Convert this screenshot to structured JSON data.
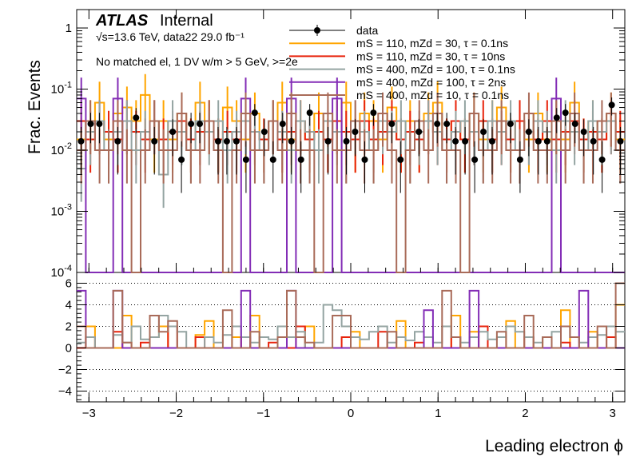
{
  "chart_data": [
    {
      "type": "step-histogram",
      "panel": "main",
      "ylabel": "Frac. Events",
      "yscale": "log",
      "ylim": [
        0.0001,
        2
      ],
      "xlim": [
        -3.14,
        3.14
      ],
      "y_ticks": [
        {
          "value": 1,
          "label": "1"
        },
        {
          "value": 0.1,
          "label": "10^-1"
        },
        {
          "value": 0.01,
          "label": "10^-2"
        },
        {
          "value": 0.001,
          "label": "10^-3"
        },
        {
          "value": 0.0001,
          "label": "10^-4"
        }
      ],
      "bins": 60,
      "data_points": {
        "name": "data",
        "x": [
          -3.09,
          -2.98,
          -2.88,
          -2.67,
          -2.46,
          -2.25,
          -2.04,
          -1.94,
          -1.83,
          -1.73,
          -1.52,
          -1.42,
          -1.31,
          -1.2,
          -1.1,
          -0.99,
          -0.89,
          -0.78,
          -0.68,
          -0.57,
          -0.47,
          -0.26,
          -0.05,
          0.05,
          0.16,
          0.26,
          0.47,
          0.57,
          0.78,
          0.99,
          1.1,
          1.2,
          1.31,
          1.42,
          1.52,
          1.62,
          1.83,
          1.94,
          2.04,
          2.15,
          2.25,
          2.36,
          2.46,
          2.57,
          2.67,
          2.78,
          2.88,
          2.99,
          3.09
        ],
        "y": [
          0.014,
          0.027,
          0.027,
          0.014,
          0.034,
          0.014,
          0.02,
          0.007,
          0.027,
          0.027,
          0.014,
          0.014,
          0.014,
          0.007,
          0.041,
          0.02,
          0.007,
          0.027,
          0.014,
          0.007,
          0.041,
          0.014,
          0.014,
          0.02,
          0.007,
          0.041,
          0.027,
          0.007,
          0.02,
          0.027,
          0.027,
          0.014,
          0.014,
          0.007,
          0.02,
          0.014,
          0.027,
          0.007,
          0.02,
          0.014,
          0.014,
          0.034,
          0.041,
          0.027,
          0.02,
          0.014,
          0.007,
          0.055,
          0.014
        ],
        "yerr": [
          0.01,
          0.014,
          0.014,
          0.01,
          0.015,
          0.01,
          0.012,
          0.007,
          0.014,
          0.014,
          0.01,
          0.01,
          0.01,
          0.007,
          0.016,
          0.012,
          0.007,
          0.014,
          0.01,
          0.007,
          0.016,
          0.01,
          0.01,
          0.012,
          0.007,
          0.016,
          0.014,
          0.007,
          0.012,
          0.014,
          0.014,
          0.01,
          0.01,
          0.007,
          0.012,
          0.01,
          0.014,
          0.007,
          0.012,
          0.01,
          0.01,
          0.015,
          0.016,
          0.014,
          0.012,
          0.01,
          0.007,
          0.018,
          0.01
        ]
      },
      "series": [
        {
          "name": "mS = 110, mZd = 30, τ = 0.1ns",
          "color": "#ffa500",
          "values": [
            0.015,
            0.03,
            0.06,
            0.015,
            0.04,
            0.05,
            0.03,
            0.08,
            0.015,
            0.03,
            0.015,
            0.04,
            0.015,
            0.06,
            0.03,
            0.015,
            0.05,
            0.03,
            0.015,
            0.04,
            0.015,
            0.03,
            0.06,
            0.015,
            0.03,
            0.015,
            0.04,
            0.015,
            0.03,
            0.06,
            0.015,
            0.04,
            0.03,
            0.015,
            0.05,
            0.015,
            0.03,
            0.015,
            0.04,
            0.06,
            0.015,
            0.03,
            0.015,
            0.04,
            0.015,
            0.03,
            0.05,
            0.015,
            0.03,
            0.015,
            0.04,
            0.015,
            0.03,
            0.015,
            0.06,
            0.015,
            0.03,
            0.015,
            0.04,
            0.015
          ]
        },
        {
          "name": "mS = 110, mZd = 30, τ = 10ns",
          "color": "#e8230c",
          "values": [
            0.03,
            0.015,
            0.03,
            0.02,
            0.015,
            0.03,
            0.02,
            0.015,
            0.03,
            0.015,
            0.02,
            0.03,
            0.015,
            0.02,
            0.03,
            0.015,
            0.02,
            0.015,
            0.03,
            0.02,
            0.015,
            0.03,
            0.015,
            0.02,
            0.03,
            0.015,
            0.02,
            0.015,
            0.03,
            0.02,
            0.015,
            0.03,
            0.015,
            0.02,
            0.03,
            0.015,
            0.02,
            0.015,
            0.03,
            0.02,
            0.015,
            0.03,
            0.015,
            0.02,
            0.03,
            0.015,
            0.02,
            0.015,
            0.03,
            0.02,
            0.015,
            0.03,
            0.015,
            0.02,
            0.03,
            0.015,
            0.02,
            0.015,
            0.03,
            0.02
          ]
        },
        {
          "name": "mS = 400, mZd = 100, τ = 0.1ns",
          "color": "#94a4a2",
          "values": [
            0.005,
            0.02,
            0.03,
            0.01,
            0.02,
            0.03,
            0.01,
            0.02,
            0.03,
            0.004,
            0.03,
            0.02,
            0.01,
            0.03,
            0.02,
            0.03,
            0.01,
            0.02,
            0.03,
            0.02,
            0.01,
            0.03,
            0.02,
            0.01,
            0.03,
            0.02,
            0.01,
            0.03,
            0.02,
            0.01,
            0.03,
            0.02,
            0.01,
            0.03,
            0.02,
            0.03,
            0.01,
            0.02,
            0.03,
            0.02,
            0.01,
            0.02,
            0.03,
            0.02,
            0.01,
            0.03,
            0.02,
            0.03,
            0.01,
            0.02,
            0.03,
            0.02,
            0.01,
            0.03,
            0.02,
            0.01,
            0.03,
            0.02,
            0.03,
            0.01
          ]
        },
        {
          "name": "mS = 400, mZd = 100, τ = 2ns",
          "color": "#832db6",
          "values": [
            0.07,
            0.0001,
            0.0001,
            0.0001,
            0.07,
            0.0001,
            0.0001,
            0.0001,
            0.0001,
            0.0001,
            0.0001,
            0.0001,
            0.0001,
            0.0001,
            0.0001,
            0.0001,
            0.0001,
            0.0001,
            0.07,
            0.0001,
            0.0001,
            0.0001,
            0.0001,
            0.07,
            0.0001,
            0.0001,
            0.0001,
            0.0001,
            0.07,
            0.0001,
            0.0001,
            0.0001,
            0.0001,
            0.0001,
            0.0001,
            0.0001,
            0.0001,
            0.0001,
            0.0001,
            0.0001,
            0.0001,
            0.0001,
            0.0001,
            0.0001,
            0.0001,
            0.0001,
            0.0001,
            0.0001,
            0.0001,
            0.0001,
            0.0001,
            0.0001,
            0.07,
            0.0001,
            0.0001,
            0.0001,
            0.0001,
            0.0001,
            0.0001,
            0.0001
          ]
        },
        {
          "name": "mS = 400, mZd = 10, τ = 0.1ns",
          "color": "#a96b59",
          "values": [
            0.01,
            0.03,
            0.01,
            0.01,
            0.03,
            0.01,
            0.0001,
            0.01,
            0.03,
            0.01,
            0.01,
            0.04,
            0.01,
            0.01,
            0.03,
            0.01,
            0.0001,
            0.01,
            0.04,
            0.01,
            0.01,
            0.03,
            0.01,
            0.04,
            0.01,
            0.01,
            0.0001,
            0.04,
            0.01,
            0.01,
            0.03,
            0.01,
            0.01,
            0.04,
            0.01,
            0.0001,
            0.01,
            0.03,
            0.01,
            0.04,
            0.01,
            0.01,
            0.0001,
            0.04,
            0.01,
            0.01,
            0.03,
            0.01,
            0.01,
            0.04,
            0.01,
            0.01,
            0.03,
            0.01,
            0.04,
            0.01,
            0.01,
            0.03,
            0.04,
            0.01
          ]
        }
      ]
    },
    {
      "type": "step-histogram",
      "panel": "ratio",
      "xlabel": "Leading electron ϕ",
      "ylim": [
        -5,
        7
      ],
      "xlim": [
        -3.14,
        3.14
      ],
      "y_ticks": [
        6,
        4,
        2,
        0,
        -2,
        -4
      ],
      "x_ticks": [
        -3,
        -2,
        -1,
        0,
        1,
        2,
        3
      ],
      "gridlines_y": [
        -4,
        -2,
        2,
        4,
        6
      ],
      "series": [
        {
          "name": "mS = 110, mZd = 30, τ = 0.1ns",
          "color": "#ffa500",
          "values": [
            0,
            2,
            0,
            0,
            0,
            3,
            0,
            0,
            1,
            2,
            0,
            0,
            0,
            1.2,
            2.5,
            0,
            0,
            1,
            0,
            3,
            0,
            0,
            1,
            0,
            0,
            2,
            0,
            0,
            0,
            0,
            1.5,
            0,
            0,
            0,
            0,
            2.5,
            0,
            0,
            0,
            0,
            0,
            3,
            0,
            1.5,
            0,
            0,
            0,
            2.5,
            0,
            0,
            0,
            1,
            0,
            3.5,
            0,
            0,
            1.5,
            0,
            0,
            4
          ]
        },
        {
          "name": "mS = 110, mZd = 30, τ = 10ns",
          "color": "#e8230c",
          "values": [
            0,
            1,
            0,
            0,
            1.5,
            0,
            0,
            0.5,
            0,
            0,
            2,
            0,
            0,
            1,
            0,
            0,
            0,
            0,
            1,
            0,
            0,
            0.5,
            0,
            0,
            2,
            0,
            0,
            0,
            0,
            1,
            0,
            0,
            0,
            1.5,
            0,
            0,
            0,
            0.5,
            0,
            0,
            0,
            1,
            0,
            0,
            2,
            0,
            0,
            0,
            0,
            1,
            0,
            0,
            0,
            0.5,
            0,
            0,
            0,
            0,
            1,
            0
          ]
        },
        {
          "name": "mS = 400, mZd = 100, τ = 0.1ns",
          "color": "#94a4a2",
          "values": [
            0.5,
            1,
            0,
            0,
            1.2,
            0.5,
            2,
            0.8,
            1,
            3,
            2,
            1.5,
            0,
            0,
            1,
            0.5,
            1.2,
            2,
            1,
            0.5,
            1,
            0.8,
            2,
            1,
            1.5,
            0,
            0.5,
            4,
            3.5,
            2,
            1,
            0.8,
            1.5,
            2,
            0.5,
            1,
            0.7,
            1.5,
            1,
            0.5,
            2,
            1,
            0.5,
            1,
            1.5,
            0.8,
            1,
            2,
            1.5,
            1,
            0.5,
            1,
            1.5,
            2,
            1,
            0.5,
            1,
            1.2,
            2,
            1.5
          ]
        },
        {
          "name": "mS = 400, mZd = 100, τ = 2ns",
          "color": "#832db6",
          "values": [
            5.3,
            0,
            0,
            0,
            5.3,
            0,
            0,
            0,
            0,
            0,
            0,
            0,
            0,
            0,
            0,
            0,
            0,
            0,
            5.3,
            0,
            0,
            0,
            0,
            5.3,
            0,
            0,
            0,
            0,
            0,
            0,
            0,
            0,
            0,
            0,
            0,
            0,
            0,
            0,
            3.5,
            0,
            0,
            0,
            0,
            5.3,
            0,
            0,
            0,
            0,
            0,
            0,
            0,
            0,
            0,
            0,
            0,
            5.3,
            0,
            0,
            0,
            0
          ]
        },
        {
          "name": "mS = 400, mZd = 10, τ = 0.1ns",
          "color": "#a96b59",
          "values": [
            2,
            0,
            0,
            0,
            5.3,
            0.5,
            0,
            0,
            3,
            1.5,
            2.5,
            0,
            0,
            0,
            0,
            0,
            3.5,
            0,
            0,
            1.5,
            0,
            0,
            1,
            5.3,
            1,
            0.5,
            0,
            0,
            3,
            3,
            0,
            0,
            0,
            0,
            1.5,
            0,
            0,
            0,
            0,
            0,
            5.3,
            1,
            0,
            0,
            0,
            0,
            1.5,
            0,
            0,
            3,
            0,
            1,
            0,
            2,
            1,
            0,
            0,
            2,
            0,
            6
          ]
        }
      ]
    }
  ],
  "labels": {
    "atlas": "ATLAS",
    "internal": "Internal",
    "energy": "√s=13.6 TeV, data22 29.0 fb⁻¹",
    "selection": "No matched el, 1 DV w/m > 5 GeV, >=2e",
    "ylabel": "Frac. Events",
    "xlabel": "Leading electron ϕ"
  },
  "legend": [
    {
      "label": "data",
      "kind": "marker",
      "color": "#000000"
    },
    {
      "label": "mS = 110, mZd = 30, τ = 0.1ns",
      "kind": "line",
      "color": "#ffa500"
    },
    {
      "label": "mS = 110, mZd = 30, τ = 10ns",
      "kind": "line",
      "color": "#e8230c"
    },
    {
      "label": "mS = 400, mZd = 100, τ = 0.1ns",
      "kind": "line",
      "color": "#94a4a2"
    },
    {
      "label": "mS = 400, mZd = 100, τ = 2ns",
      "kind": "line",
      "color": "#832db6"
    },
    {
      "label": "mS = 400, mZd = 10, τ = 0.1ns",
      "kind": "line",
      "color": "#a96b59"
    }
  ]
}
